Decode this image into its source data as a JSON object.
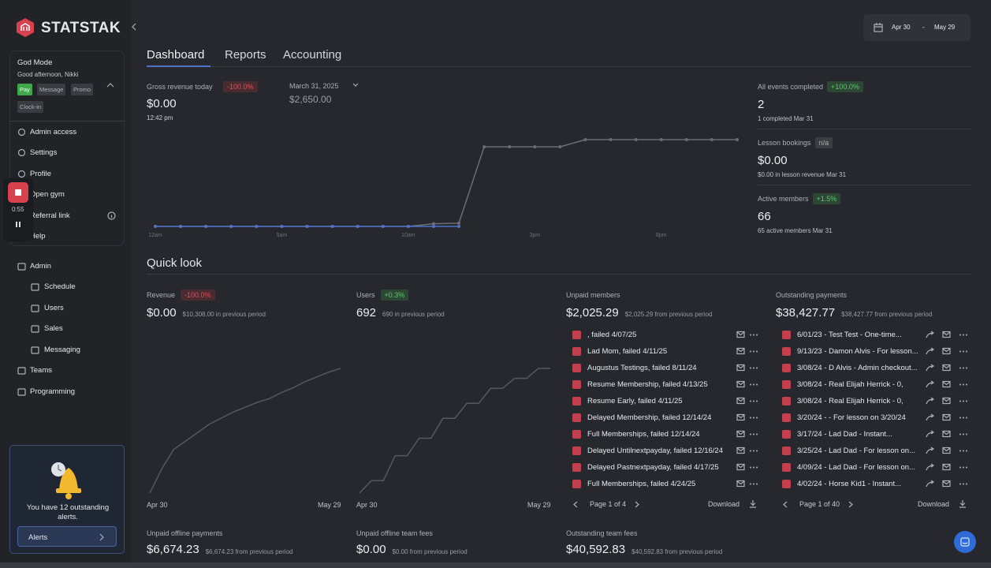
{
  "sidebar": {
    "brand": "STATSTAK",
    "mode": {
      "title": "God Mode",
      "greeting": "Good afternoon, Nikki",
      "buttons": [
        "Pay",
        "Message",
        "Promo",
        "Clock-in"
      ]
    },
    "menu": [
      "Admin access",
      "Settings",
      "Profile",
      "Open gym",
      "Referral link",
      "Help"
    ],
    "recording": {
      "time": "0:55"
    },
    "admin": {
      "label": "Admin",
      "items": [
        "Schedule",
        "Users",
        "Sales",
        "Messaging"
      ]
    },
    "nav": [
      "Teams",
      "Programming"
    ],
    "alerts": {
      "text": "You have 12 outstanding alerts.",
      "button": "Alerts"
    }
  },
  "date_range": {
    "start": "Apr 30",
    "separator": "-",
    "end": "May 29"
  },
  "tabs": [
    "Dashboard",
    "Reports",
    "Accounting"
  ],
  "today": {
    "label": "Gross revenue today",
    "badge": "-100.0%",
    "value": "$0.00",
    "time": "12:42 pm",
    "compare_date": "March 31, 2025",
    "compare_value": "$2,650.00",
    "chart": {
      "type": "line",
      "categories": [
        "12am",
        null,
        null,
        null,
        null,
        "5am",
        null,
        null,
        null,
        null,
        "10am",
        null,
        null,
        null,
        null,
        "3pm",
        null,
        null,
        null,
        null,
        "8pm",
        null,
        null,
        null
      ],
      "series": [
        {
          "color": "#6b6e75",
          "values": [
            0,
            0,
            0,
            0,
            0,
            0,
            0,
            0,
            0,
            0,
            0,
            80,
            100,
            2430,
            2430,
            2430,
            2430,
            2650,
            2650,
            2650,
            2650,
            2650,
            2650,
            2650
          ]
        },
        {
          "color": "#4f73c4",
          "values": [
            0,
            0,
            0,
            0,
            0,
            0,
            0,
            0,
            0,
            0,
            0,
            0,
            0,
            null,
            null,
            null,
            null,
            null,
            null,
            null,
            null,
            null,
            null,
            null
          ]
        }
      ]
    }
  },
  "stats": [
    {
      "label": "All events completed",
      "badge": "+100.0%",
      "value": "2",
      "note": "1 completed Mar 31"
    },
    {
      "label": "Lesson bookings",
      "badge": "n/a",
      "value": "$0.00",
      "note": "$0.00 in lesson revenue Mar 31"
    },
    {
      "label": "Active members",
      "badge": "+1.5%",
      "value": "66",
      "note": "65 active members Mar 31"
    }
  ],
  "quick_look": {
    "title": "Quick look",
    "revenue": {
      "label": "Revenue",
      "badge": "-100.0%",
      "value": "$0.00",
      "note": "$10,308.00 in previous period",
      "x_start": "Apr 30",
      "x_end": "May 29",
      "chart": {
        "type": "line",
        "color": "#55585e",
        "values": [
          0,
          2000,
          3600,
          4300,
          5000,
          5700,
          6200,
          6700,
          7100,
          7500,
          7800,
          8300,
          8700,
          9200,
          9600,
          10000,
          10308
        ]
      }
    },
    "users": {
      "label": "Users",
      "badge": "+0.3%",
      "value": "692",
      "note": "690 in previous period",
      "x_start": "Apr 30",
      "x_end": "May 29",
      "chart": {
        "type": "line",
        "color": "#55585e",
        "values": [
          640,
          645,
          645,
          655,
          655,
          662,
          662,
          670,
          670,
          676,
          676,
          682,
          682,
          686,
          686,
          690,
          690
        ]
      }
    },
    "unpaid_members": {
      "label": "Unpaid members",
      "value": "$2,025.29",
      "note": "$2,025.29 from previous period",
      "items": [
        ", failed 4/07/25",
        "Lad Mom, failed 4/11/25",
        "Augustus Testings, failed 8/11/24",
        "Resume Membership, failed 4/13/25",
        "Resume Early, failed 4/11/25",
        "Delayed Membership, failed 12/14/24",
        "Full Memberships, failed 12/14/24",
        "Delayed Untilnextpayday, failed 12/16/24",
        "Delayed Pastnextpayday, failed 4/17/25",
        "Full Memberships, failed 4/24/25"
      ],
      "page": "Page 1 of 4",
      "download": "Download"
    },
    "outstanding_payments": {
      "label": "Outstanding payments",
      "value": "$38,427.77",
      "note": "$38,427.77 from previous period",
      "items": [
        "6/01/23 - Test Test - One-time...",
        "9/13/23 - Damon Alvis - For lesson...",
        "3/08/24 - D Alvis - Admin checkout...",
        "3/08/24 - Real Elijah Herrick - 0,",
        "3/08/24 - Real Elijah Herrick - 0,",
        "3/20/24 -  - For lesson on 3/20/24",
        "3/17/24 - Lad Dad - Instant...",
        "3/25/24 - Lad Dad - For lesson on...",
        "4/09/24 - Lad Dad - For lesson on...",
        "4/02/24 - Horse Kid1 - Instant..."
      ],
      "page": "Page 1 of 40",
      "download": "Download"
    },
    "bottom": [
      {
        "label": "Unpaid offline payments",
        "value": "$6,674.23",
        "note": "$6,674.23 from previous period"
      },
      {
        "label": "Unpaid offline team fees",
        "value": "$0.00",
        "note": "$0.00 from previous period"
      },
      {
        "label": "Outstanding team fees",
        "value": "$40,592.83",
        "note": "$40,592.83 from previous period"
      }
    ]
  }
}
